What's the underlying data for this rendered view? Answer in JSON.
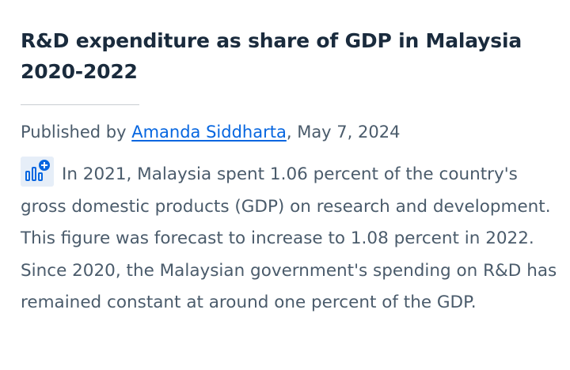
{
  "article": {
    "title_line1": "R&D expenditure as share of GDP in Malaysia",
    "title_line2": "2020-2022",
    "published_prefix": "Published by ",
    "author": "Amanda Siddharta",
    "date": ", May 7, 2024",
    "description": "In 2021, Malaysia spent 1.06 percent of the country's gross domestic products (GDP) on research and development. This figure was forecast to increase to 1.08 percent in 2022. Since 2020, the Malaysian government's spending on R&D has remained constant at around one percent of the GDP.",
    "icon": "statistic-chart-plus-icon",
    "colors": {
      "title": "#1a2b3d",
      "text": "#4a5b6b",
      "link": "#0666e0",
      "icon_accent": "#0666e0"
    }
  }
}
